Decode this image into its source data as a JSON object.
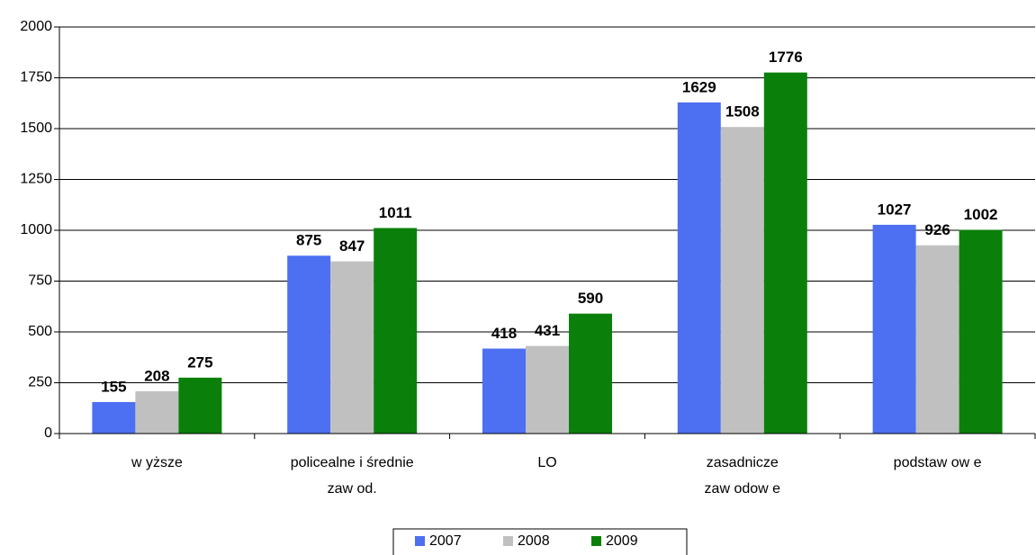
{
  "chart_data": {
    "type": "bar",
    "categories": [
      "w yższe",
      "policealne i średnie\nzaw od.",
      "LO",
      "zasadnicze\nzaw odow e",
      "podstaw ow e"
    ],
    "series": [
      {
        "name": "2007",
        "color": "#4d6ff2",
        "values": [
          155,
          875,
          418,
          1629,
          1027
        ]
      },
      {
        "name": "2008",
        "color": "#c0c0c0",
        "values": [
          208,
          847,
          431,
          1508,
          926
        ]
      },
      {
        "name": "2009",
        "color": "#0a800a",
        "values": [
          275,
          1011,
          590,
          1776,
          1002
        ]
      }
    ],
    "ylim": [
      0,
      2000
    ],
    "yticks": [
      0,
      250,
      500,
      750,
      1000,
      1250,
      1500,
      1750,
      2000
    ],
    "grid": true,
    "legend": "bottom"
  }
}
